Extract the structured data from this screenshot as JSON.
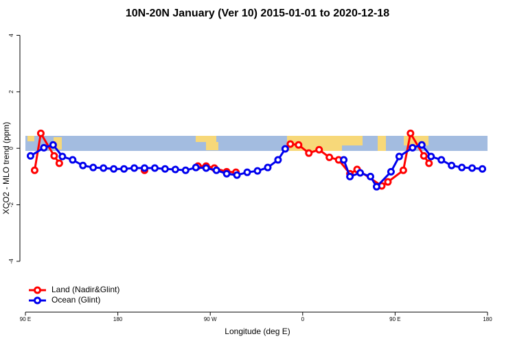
{
  "chart_data": {
    "type": "line",
    "title": "10N-20N January (Ver 10)   2015-01-01 to 2020-12-18",
    "x_label": "Longitude (deg E)",
    "y_label": "XCO2 - MLO trend (ppm)",
    "xlim": [
      90,
      540
    ],
    "ylim": [
      -5.8,
      4.4
    ],
    "xticks": [
      {
        "value": 90,
        "label": "90 E"
      },
      180,
      {
        "value": 270,
        "label": "90 W"
      },
      {
        "value": 360,
        "label": "0"
      },
      {
        "value": 450,
        "label": "90 E"
      },
      {
        "value": 540,
        "label": "180"
      }
    ],
    "yticks": [
      -4,
      -2,
      0,
      2,
      4
    ],
    "legend": "bottom-left",
    "series": [
      {
        "name": "Land (Nadir&Glint)",
        "color": "#ff0000",
        "x": [
          99,
          105,
          118,
          123,
          null,
          206,
          null,
          258,
          266,
          274,
          286,
          295,
          null,
          348,
          356,
          366,
          376,
          386,
          395,
          406,
          413,
          437,
          443,
          458,
          465,
          478,
          483
        ],
        "values": [
          -0.78,
          0.53,
          -0.27,
          -0.53,
          null,
          -0.78,
          null,
          -0.63,
          -0.63,
          -0.7,
          -0.83,
          -0.85,
          null,
          0.15,
          0.12,
          -0.17,
          -0.05,
          -0.32,
          -0.41,
          -0.9,
          -0.75,
          -1.33,
          -1.19,
          -0.78,
          0.53,
          -0.27,
          -0.53
        ]
      },
      {
        "name": "Ocean (Glint)",
        "color": "#0000ee",
        "x": [
          95,
          108,
          117,
          126,
          136,
          146,
          156,
          166,
          176,
          186,
          196,
          206,
          216,
          226,
          236,
          246,
          256,
          266,
          276,
          286,
          296,
          306,
          316,
          326,
          336,
          343,
          null,
          400,
          406,
          416,
          426,
          432,
          446,
          454,
          467,
          476,
          485,
          495,
          505,
          515,
          525,
          535
        ],
        "values": [
          -0.27,
          0.02,
          0.12,
          -0.29,
          -0.41,
          -0.61,
          -0.68,
          -0.7,
          -0.73,
          -0.73,
          -0.7,
          -0.7,
          -0.7,
          -0.73,
          -0.75,
          -0.78,
          -0.68,
          -0.7,
          -0.78,
          -0.9,
          -0.95,
          -0.85,
          -0.8,
          -0.68,
          -0.41,
          -0.02,
          null,
          -0.41,
          -1.0,
          -0.87,
          -1.0,
          -1.36,
          -0.83,
          -0.29,
          0.02,
          0.12,
          -0.29,
          -0.41,
          -0.61,
          -0.68,
          -0.7,
          -0.73
        ]
      }
    ]
  }
}
